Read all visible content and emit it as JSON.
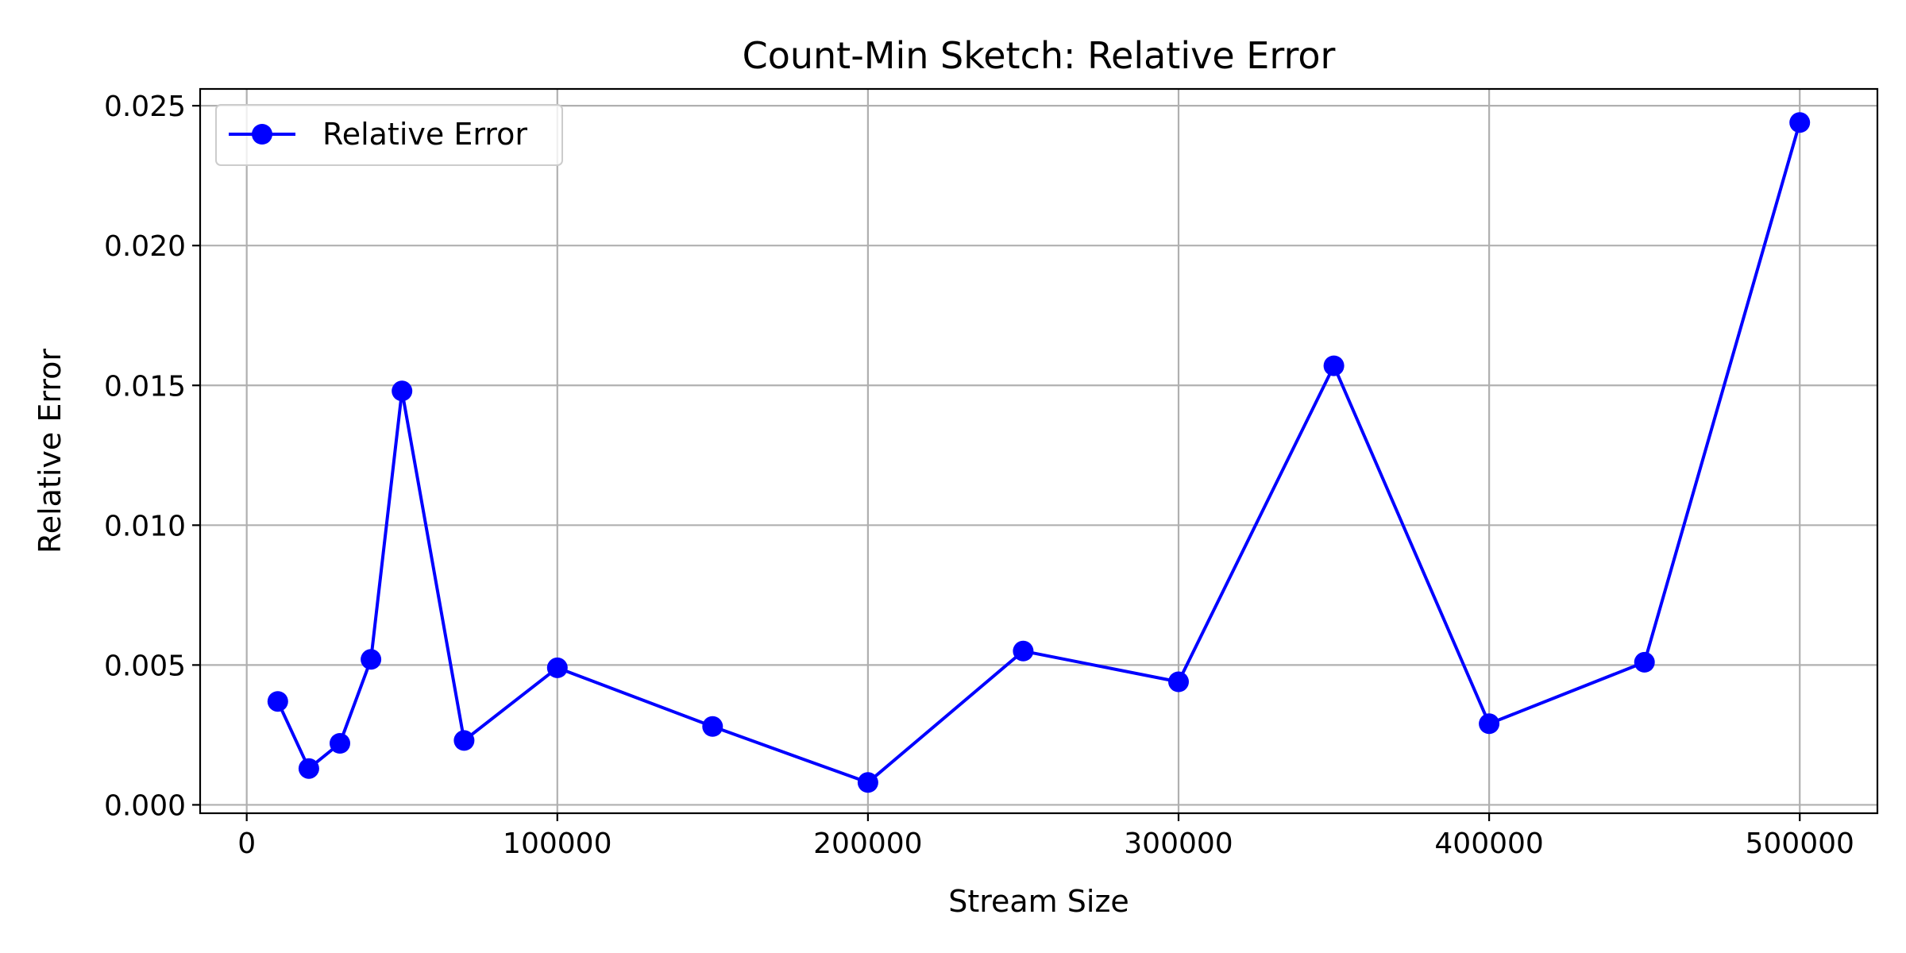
{
  "chart_data": {
    "type": "line",
    "title": "Count-Min Sketch: Relative Error",
    "xlabel": "Stream Size",
    "ylabel": "Relative Error",
    "xlim": [
      -15000,
      525000
    ],
    "ylim": [
      -0.0003,
      0.0256
    ],
    "xticks": [
      0,
      100000,
      200000,
      300000,
      400000,
      500000
    ],
    "xtick_labels": [
      "0",
      "100000",
      "200000",
      "300000",
      "400000",
      "500000"
    ],
    "yticks": [
      0.0,
      0.005,
      0.01,
      0.015,
      0.02,
      0.025
    ],
    "ytick_labels": [
      "0.000",
      "0.005",
      "0.010",
      "0.015",
      "0.020",
      "0.025"
    ],
    "grid": true,
    "legend_position": "top-left",
    "series": [
      {
        "name": "Relative Error",
        "color": "#0000ff",
        "marker": "circle",
        "x": [
          10000,
          20000,
          30000,
          40000,
          50000,
          70000,
          100000,
          150000,
          200000,
          250000,
          300000,
          350000,
          400000,
          450000,
          500000
        ],
        "y": [
          0.0037,
          0.0013,
          0.0022,
          0.0052,
          0.0148,
          0.0023,
          0.0049,
          0.0028,
          0.0008,
          0.0055,
          0.0044,
          0.0157,
          0.0029,
          0.0051,
          0.0244
        ]
      }
    ]
  }
}
